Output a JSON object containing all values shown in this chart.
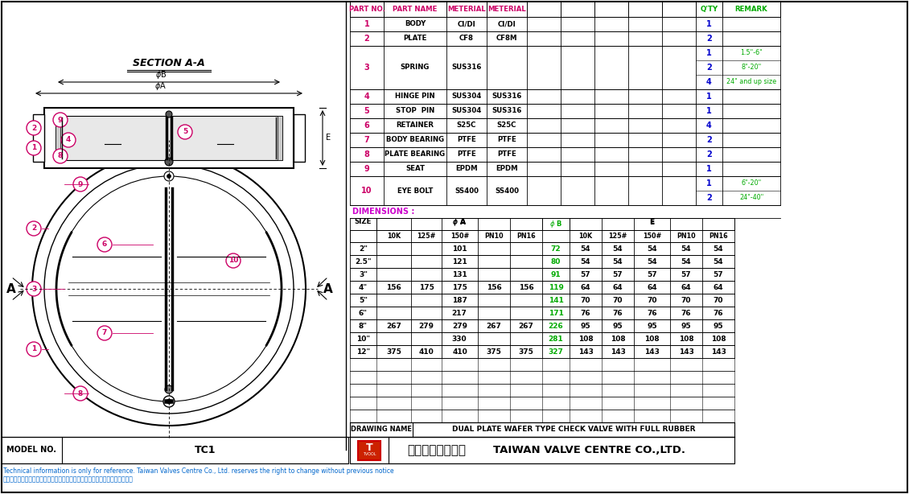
{
  "bg_color": "#ffffff",
  "parts_table": {
    "header": [
      "PART NO.",
      "PART NAME",
      "METERIAL",
      "METERIAL",
      "",
      "",
      "",
      "",
      "",
      "Q'TY",
      "REMARK"
    ],
    "header_colors": [
      "#cc0066",
      "#cc0066",
      "#cc0066",
      "#cc0066",
      "#cc0066",
      "#cc0066",
      "#cc0066",
      "#cc0066",
      "#cc0066",
      "#00aa00",
      "#00aa00"
    ]
  },
  "dim_table": {
    "sizes": [
      "2\"",
      "2.5\"",
      "3\"",
      "4\"",
      "5\"",
      "6\"",
      "8\"",
      "10\"",
      "12\""
    ],
    "phiA": {
      "10K": [
        "",
        "",
        "",
        "156",
        "",
        "",
        "267",
        "",
        "375"
      ],
      "125#": [
        "",
        "",
        "",
        "175",
        "",
        "",
        "279",
        "",
        "410"
      ],
      "150#": [
        "101",
        "121",
        "131",
        "175",
        "187",
        "217",
        "279",
        "330",
        "410"
      ],
      "PN10": [
        "",
        "",
        "",
        "156",
        "",
        "",
        "267",
        "",
        "375"
      ],
      "PN16": [
        "",
        "",
        "",
        "156",
        "",
        "",
        "267",
        "",
        "375"
      ]
    },
    "phiB": [
      "72",
      "80",
      "91",
      "119",
      "141",
      "171",
      "226",
      "281",
      "327"
    ],
    "E": {
      "10K": [
        "54",
        "54",
        "57",
        "64",
        "70",
        "76",
        "95",
        "108",
        "143"
      ],
      "125#": [
        "54",
        "54",
        "57",
        "64",
        "70",
        "76",
        "95",
        "108",
        "143"
      ],
      "150#": [
        "54",
        "54",
        "57",
        "64",
        "70",
        "76",
        "95",
        "108",
        "143"
      ],
      "PN10": [
        "54",
        "54",
        "57",
        "64",
        "70",
        "76",
        "95",
        "108",
        "143"
      ],
      "PN16": [
        "54",
        "54",
        "57",
        "64",
        "70",
        "76",
        "95",
        "108",
        "143"
      ]
    }
  },
  "footer": {
    "drawing_name": "DUAL PLATE WAFER TYPE CHECK VALVE WITH FULL RUBBER",
    "model_no": "TC1",
    "company_cn": "中郡股份有限公司",
    "company_en": "TAIWAN VALVE CENTRE CO.,LTD.",
    "note1": "Technical information is only for reference. Taiwan Valves Centre Co., Ltd. reserves the right to change without previous notice",
    "note2": "技術資料供作參考用途，中郡公司保留對產品設計的更改，不另行通知的權利。"
  },
  "colors": {
    "purple": "#cc0066",
    "green": "#00aa00",
    "blue": "#0000cc",
    "cyan_blue": "#0066cc",
    "phiB_color": "#00aa00",
    "dim_label_color": "#cc00cc"
  }
}
